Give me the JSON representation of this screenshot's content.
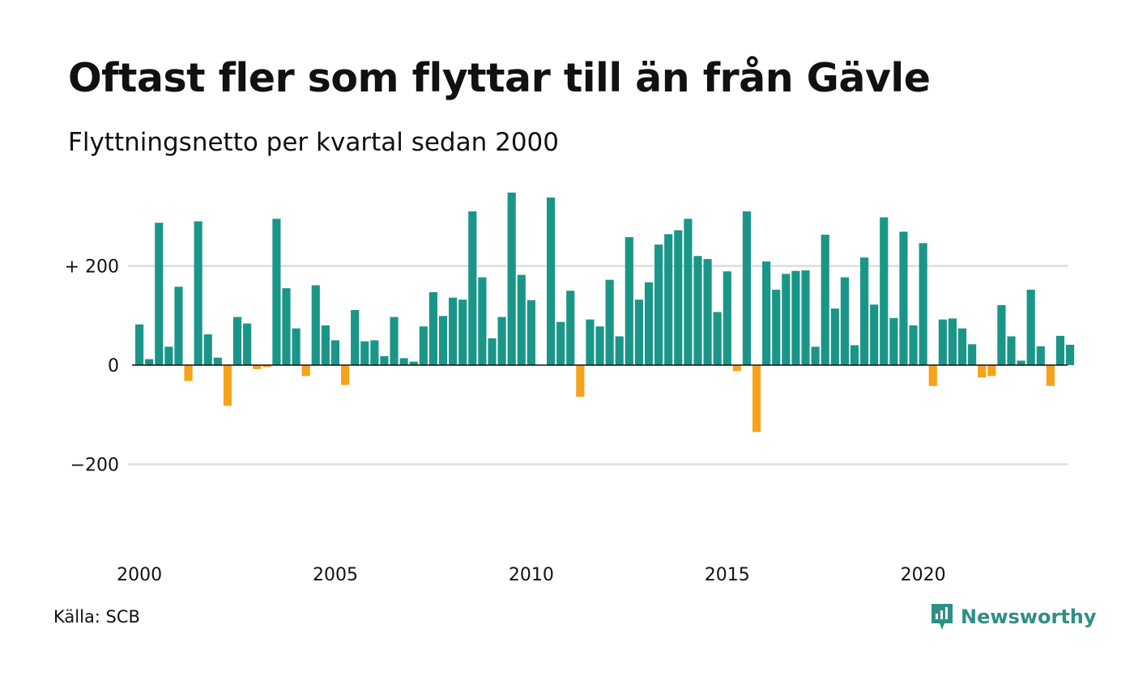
{
  "title": "Oftast fler som flyttar till än från Gävle",
  "subtitle": "Flyttningsnetto per kvartal sedan 2000",
  "source": "Källa: SCB",
  "brand": {
    "name": "Newsworthy",
    "color": "#2e8f86"
  },
  "colors": {
    "positive": "#1a9688",
    "negative": "#f7a21b",
    "grid": "#dddddd",
    "zero": "#111111"
  },
  "chart_data": {
    "type": "bar",
    "start_year": 2000,
    "y_ticks": [
      {
        "value": 200,
        "label": "+ 200"
      },
      {
        "value": 0,
        "label": "0"
      },
      {
        "value": -200,
        "label": "−200"
      }
    ],
    "x_ticks": [
      {
        "year": 2000,
        "label": "2000"
      },
      {
        "year": 2005,
        "label": "2005"
      },
      {
        "year": 2010,
        "label": "2010"
      },
      {
        "year": 2015,
        "label": "2015"
      },
      {
        "year": 2020,
        "label": "2020"
      }
    ],
    "ylim": [
      -330,
      350
    ],
    "values": [
      82,
      12,
      287,
      37,
      158,
      -32,
      290,
      62,
      15,
      -82,
      97,
      84,
      -8,
      -4,
      295,
      155,
      74,
      -22,
      161,
      80,
      50,
      -40,
      111,
      48,
      50,
      18,
      97,
      14,
      7,
      78,
      147,
      99,
      136,
      132,
      310,
      177,
      54,
      97,
      348,
      182,
      131,
      0,
      338,
      87,
      150,
      -64,
      92,
      78,
      172,
      58,
      258,
      132,
      167,
      243,
      264,
      272,
      295,
      220,
      214,
      107,
      189,
      -12,
      310,
      -135,
      209,
      152,
      184,
      190,
      191,
      37,
      263,
      114,
      177,
      40,
      217,
      122,
      298,
      95,
      269,
      80,
      246,
      -42,
      92,
      94,
      74,
      42,
      -25,
      -22,
      121,
      58,
      9,
      152,
      38,
      -42,
      59,
      41
    ]
  }
}
